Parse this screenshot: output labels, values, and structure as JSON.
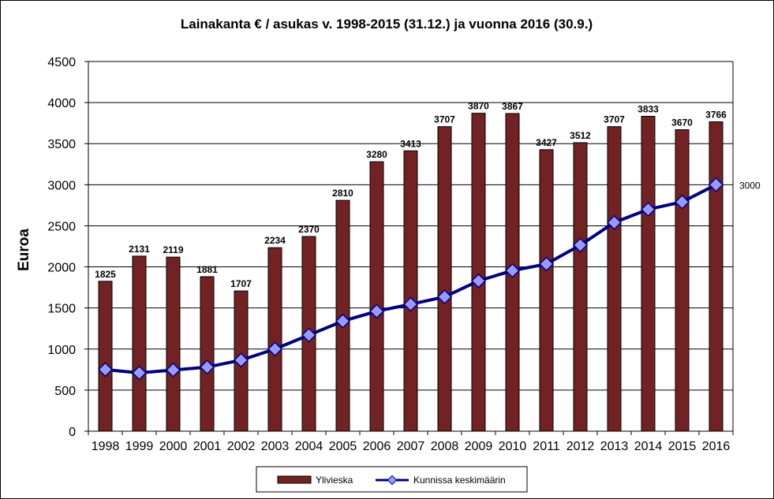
{
  "chart_data": {
    "type": "bar",
    "title": "Lainakanta € / asukas v. 1998-2015 (31.12.) ja vuonna 2016 (30.9.)",
    "xlabel": "",
    "ylabel": "Euroa",
    "ylim": [
      0,
      4500
    ],
    "yticks": [
      "0",
      "500",
      "1000",
      "1500",
      "2000",
      "2500",
      "3000",
      "3500",
      "4000",
      "4500"
    ],
    "ytick_values": [
      0,
      500,
      1000,
      1500,
      2000,
      2500,
      3000,
      3500,
      4000,
      4500
    ],
    "grid": true,
    "legend_position": "bottom",
    "categories": [
      "1998",
      "1999",
      "2000",
      "2001",
      "2002",
      "2003",
      "2004",
      "2005",
      "2006",
      "2007",
      "2008",
      "2009",
      "2010",
      "2011",
      "2012",
      "2013",
      "2014",
      "2015",
      "2016"
    ],
    "series": [
      {
        "name": "Ylivieska",
        "type": "bar",
        "color": "#722222",
        "values": [
          1825,
          2131,
          2119,
          1881,
          1707,
          2234,
          2370,
          2810,
          3280,
          3413,
          3707,
          3870,
          3867,
          3427,
          3512,
          3707,
          3833,
          3670,
          3766
        ],
        "labels": [
          "1825",
          "2131",
          "2119",
          "1881",
          "1707",
          "2234",
          "2370",
          "2810",
          "3280",
          "3413",
          "3707",
          "3870",
          "3867",
          "3427",
          "3512",
          "3707",
          "3833",
          "3670",
          "3766"
        ]
      },
      {
        "name": "Kunnissa keskimäärin",
        "type": "line",
        "color": "#000080",
        "marker_color": "#9999ff",
        "values": [
          750,
          710,
          745,
          780,
          865,
          1000,
          1170,
          1340,
          1460,
          1545,
          1635,
          1830,
          1955,
          2035,
          2265,
          2540,
          2700,
          2790,
          3000
        ]
      }
    ],
    "annotations": [
      {
        "text": "3000",
        "series": "Kunnissa keskimäärin",
        "category": "2016"
      }
    ]
  }
}
